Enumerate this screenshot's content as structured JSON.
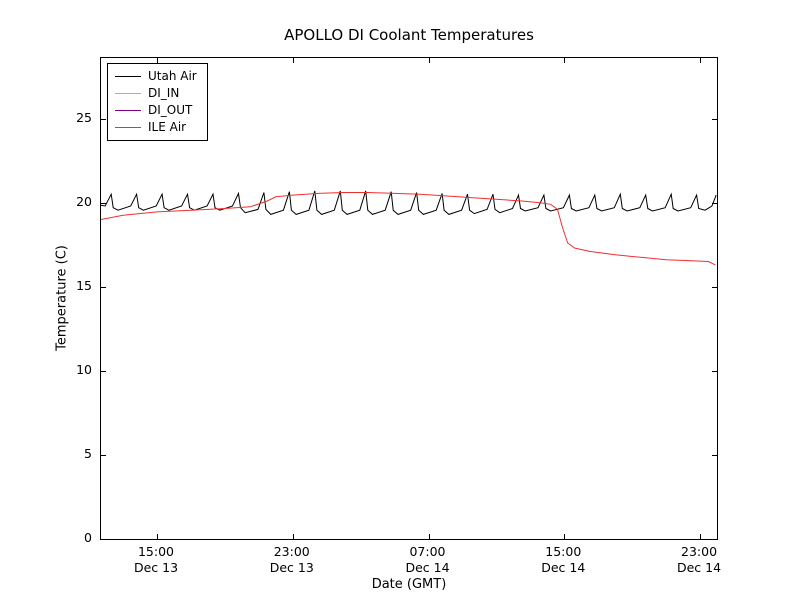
{
  "chart_data": {
    "type": "line",
    "title": "APOLLO DI Coolant Temperatures",
    "xlabel": "Date (GMT)",
    "ylabel": "Temperature (C)",
    "x_unit": "hours since Dec 13 00:00 GMT",
    "xlim": [
      11.7,
      48.0
    ],
    "ylim": [
      0,
      28.6
    ],
    "grid": false,
    "legend_position": "upper left",
    "yticks": [
      0,
      5,
      10,
      15,
      20,
      25
    ],
    "xticks": [
      {
        "value": 15,
        "time": "15:00",
        "date": "Dec 13"
      },
      {
        "value": 23,
        "time": "23:00",
        "date": "Dec 13"
      },
      {
        "value": 31,
        "time": "07:00",
        "date": "Dec 14"
      },
      {
        "value": 39,
        "time": "15:00",
        "date": "Dec 14"
      },
      {
        "value": 47,
        "time": "23:00",
        "date": "Dec 14"
      }
    ],
    "series": [
      {
        "name": "Utah Air",
        "color": "#000000",
        "points": [
          [
            11.7,
            19.85
          ],
          [
            11.95,
            19.8
          ],
          [
            12.3,
            20.5
          ],
          [
            12.42,
            19.7
          ],
          [
            12.7,
            19.55
          ],
          [
            13.45,
            19.8
          ],
          [
            13.8,
            20.5
          ],
          [
            13.92,
            19.7
          ],
          [
            14.2,
            19.55
          ],
          [
            14.95,
            19.8
          ],
          [
            15.3,
            20.5
          ],
          [
            15.42,
            19.7
          ],
          [
            15.7,
            19.55
          ],
          [
            16.45,
            19.8
          ],
          [
            16.8,
            20.5
          ],
          [
            16.92,
            19.7
          ],
          [
            17.2,
            19.55
          ],
          [
            17.95,
            19.8
          ],
          [
            18.3,
            20.5
          ],
          [
            18.42,
            19.7
          ],
          [
            18.7,
            19.55
          ],
          [
            19.45,
            19.8
          ],
          [
            19.8,
            20.55
          ],
          [
            19.92,
            19.7
          ],
          [
            20.2,
            19.4
          ],
          [
            20.95,
            19.6
          ],
          [
            21.3,
            20.6
          ],
          [
            21.42,
            19.6
          ],
          [
            21.7,
            19.3
          ],
          [
            22.45,
            19.55
          ],
          [
            22.8,
            20.65
          ],
          [
            22.92,
            19.55
          ],
          [
            23.2,
            19.3
          ],
          [
            23.95,
            19.55
          ],
          [
            24.3,
            20.7
          ],
          [
            24.42,
            19.55
          ],
          [
            24.7,
            19.3
          ],
          [
            25.45,
            19.55
          ],
          [
            25.8,
            20.7
          ],
          [
            25.92,
            19.55
          ],
          [
            26.2,
            19.3
          ],
          [
            26.95,
            19.55
          ],
          [
            27.3,
            20.7
          ],
          [
            27.42,
            19.55
          ],
          [
            27.7,
            19.3
          ],
          [
            28.45,
            19.55
          ],
          [
            28.8,
            20.65
          ],
          [
            28.92,
            19.55
          ],
          [
            29.2,
            19.3
          ],
          [
            29.95,
            19.55
          ],
          [
            30.3,
            20.6
          ],
          [
            30.42,
            19.55
          ],
          [
            30.7,
            19.3
          ],
          [
            31.45,
            19.55
          ],
          [
            31.8,
            20.55
          ],
          [
            31.92,
            19.55
          ],
          [
            32.2,
            19.3
          ],
          [
            32.95,
            19.55
          ],
          [
            33.3,
            20.5
          ],
          [
            33.42,
            19.55
          ],
          [
            33.7,
            19.35
          ],
          [
            34.45,
            19.6
          ],
          [
            34.8,
            20.5
          ],
          [
            34.92,
            19.6
          ],
          [
            35.2,
            19.4
          ],
          [
            35.95,
            19.65
          ],
          [
            36.3,
            20.45
          ],
          [
            36.42,
            19.65
          ],
          [
            36.7,
            19.5
          ],
          [
            37.45,
            19.7
          ],
          [
            37.8,
            20.45
          ],
          [
            37.92,
            19.65
          ],
          [
            38.2,
            19.5
          ],
          [
            38.95,
            19.7
          ],
          [
            39.3,
            20.45
          ],
          [
            39.42,
            19.65
          ],
          [
            39.7,
            19.5
          ],
          [
            40.45,
            19.7
          ],
          [
            40.8,
            20.45
          ],
          [
            40.92,
            19.65
          ],
          [
            41.2,
            19.5
          ],
          [
            41.95,
            19.7
          ],
          [
            42.3,
            20.5
          ],
          [
            42.42,
            19.65
          ],
          [
            42.7,
            19.5
          ],
          [
            43.45,
            19.7
          ],
          [
            43.8,
            20.45
          ],
          [
            43.92,
            19.65
          ],
          [
            44.2,
            19.5
          ],
          [
            44.95,
            19.7
          ],
          [
            45.3,
            20.5
          ],
          [
            45.42,
            19.65
          ],
          [
            45.7,
            19.5
          ],
          [
            46.45,
            19.7
          ],
          [
            46.8,
            20.45
          ],
          [
            46.92,
            19.65
          ],
          [
            47.3,
            19.55
          ],
          [
            47.7,
            19.8
          ],
          [
            47.95,
            20.45
          ]
        ]
      },
      {
        "name": "DI_IN",
        "color": "#ffa500",
        "points": []
      },
      {
        "name": "DI_OUT",
        "color": "#800080",
        "points": []
      },
      {
        "name": "ILE Air",
        "color": "#f03030",
        "points": [
          [
            11.7,
            19.0
          ],
          [
            13.0,
            19.25
          ],
          [
            15.0,
            19.45
          ],
          [
            17.0,
            19.55
          ],
          [
            19.0,
            19.65
          ],
          [
            20.5,
            19.75
          ],
          [
            21.5,
            20.1
          ],
          [
            22.0,
            20.35
          ],
          [
            23.0,
            20.45
          ],
          [
            24.5,
            20.55
          ],
          [
            26.0,
            20.6
          ],
          [
            27.5,
            20.6
          ],
          [
            29.0,
            20.55
          ],
          [
            30.5,
            20.5
          ],
          [
            32.0,
            20.4
          ],
          [
            33.5,
            20.3
          ],
          [
            35.0,
            20.2
          ],
          [
            36.5,
            20.1
          ],
          [
            37.5,
            20.0
          ],
          [
            38.2,
            19.9
          ],
          [
            38.6,
            19.6
          ],
          [
            38.9,
            18.5
          ],
          [
            39.2,
            17.6
          ],
          [
            39.6,
            17.3
          ],
          [
            40.5,
            17.1
          ],
          [
            42.0,
            16.9
          ],
          [
            43.5,
            16.75
          ],
          [
            45.0,
            16.6
          ],
          [
            46.5,
            16.55
          ],
          [
            47.5,
            16.5
          ],
          [
            47.9,
            16.3
          ]
        ]
      }
    ]
  }
}
